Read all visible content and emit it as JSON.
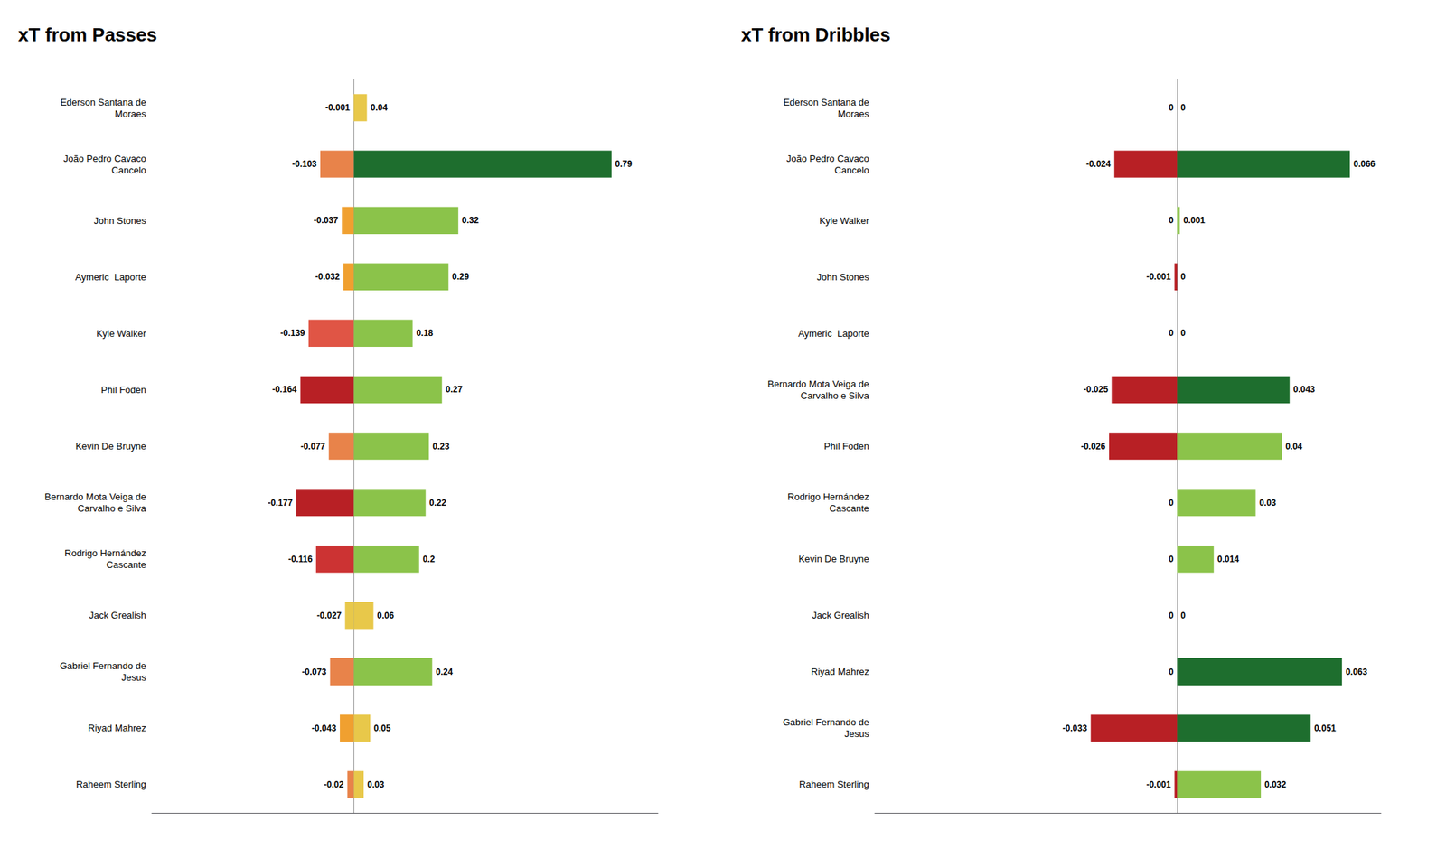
{
  "chart_data": [
    {
      "type": "bar",
      "orientation": "horizontal",
      "title": "xT from Passes",
      "categories": [
        "Ederson Santana de\nMoraes",
        "João Pedro Cavaco\nCancelo",
        "John Stones",
        "Aymeric  Laporte",
        "Kyle Walker",
        "Phil Foden",
        "Kevin De Bruyne",
        "Bernardo Mota Veiga de\nCarvalho e Silva",
        "Rodrigo Hernández\nCascante",
        "Jack Grealish",
        "Gabriel Fernando de\nJesus",
        "Riyad Mahrez",
        "Raheem Sterling"
      ],
      "series": [
        {
          "values": [
            -0.001,
            -0.103,
            -0.037,
            -0.032,
            -0.139,
            -0.164,
            -0.077,
            -0.177,
            -0.116,
            -0.027,
            -0.073,
            -0.043,
            -0.02
          ],
          "colors": [
            "#e8c84a",
            "#e8834a",
            "#f0a030",
            "#f0a030",
            "#e05545",
            "#b82025",
            "#e8834a",
            "#b82025",
            "#cc3333",
            "#e8c84a",
            "#e8834a",
            "#f0a030",
            "#e8834a"
          ]
        },
        {
          "values": [
            0.04,
            0.79,
            0.32,
            0.29,
            0.18,
            0.27,
            0.23,
            0.22,
            0.2,
            0.06,
            0.24,
            0.05,
            0.03
          ],
          "colors": [
            "#e8c84a",
            "#1e6e2e",
            "#8bc34a",
            "#8bc34a",
            "#8bc34a",
            "#8bc34a",
            "#8bc34a",
            "#8bc34a",
            "#8bc34a",
            "#e8c84a",
            "#8bc34a",
            "#e8c84a",
            "#e8c84a"
          ]
        }
      ],
      "xlim": [
        -0.6195,
        0.9322
      ],
      "data_labels": true,
      "tick_labels": "y",
      "grid": false
    },
    {
      "type": "bar",
      "orientation": "horizontal",
      "title": "xT from Dribbles",
      "categories": [
        "Ederson Santana de\nMoraes",
        "João Pedro Cavaco\nCancelo",
        "Kyle Walker",
        "John Stones",
        "Aymeric  Laporte",
        "Bernardo Mota Veiga de\nCarvalho e Silva",
        "Phil Foden",
        "Rodrigo Hernández\nCascante",
        "Kevin De Bruyne",
        "Jack Grealish",
        "Riyad Mahrez",
        "Gabriel Fernando de\nJesus",
        "Raheem Sterling"
      ],
      "series": [
        {
          "values": [
            0.0,
            -0.024,
            0.0,
            -0.001,
            0.0,
            -0.025,
            -0.026,
            0.0,
            0.0,
            0.0,
            0.0,
            -0.033,
            -0.001
          ],
          "colors": [
            "#e8834a",
            "#b82025",
            "#e8834a",
            "#b82025",
            "#e8834a",
            "#b82025",
            "#b82025",
            "#e8834a",
            "#e8834a",
            "#e8834a",
            "#e8834a",
            "#b82025",
            "#b82025"
          ]
        },
        {
          "values": [
            0.0,
            0.066,
            0.001,
            0.0,
            0.0,
            0.043,
            0.04,
            0.03,
            0.014,
            0.0,
            0.063,
            0.051,
            0.032
          ],
          "colors": [
            "#8bc34a",
            "#1e6e2e",
            "#8bc34a",
            "#8bc34a",
            "#8bc34a",
            "#1e6e2e",
            "#8bc34a",
            "#8bc34a",
            "#8bc34a",
            "#8bc34a",
            "#1e6e2e",
            "#1e6e2e",
            "#8bc34a"
          ]
        }
      ],
      "xlim": [
        -0.1155,
        0.07788
      ],
      "data_labels": true,
      "tick_labels": "y",
      "grid": false
    }
  ]
}
